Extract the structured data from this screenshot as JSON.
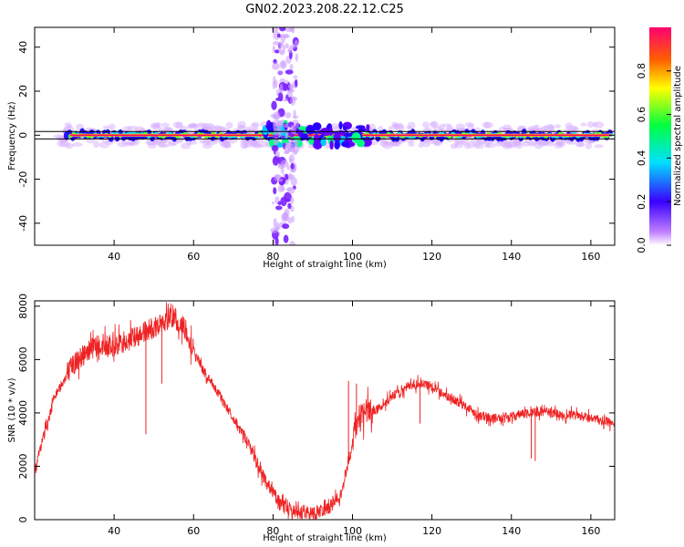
{
  "title": "GN02.2023.208.22.12.C25",
  "chart_data": [
    {
      "type": "heatmap",
      "xlabel": "Height of straight line (km)",
      "ylabel": "Frequency (Hz)",
      "xlim": [
        20,
        166
      ],
      "ylim": [
        -50,
        49
      ],
      "xticks": [
        40,
        60,
        80,
        100,
        120,
        140,
        160
      ],
      "yticks": [
        -40,
        -20,
        0,
        20,
        40
      ],
      "colorbar": {
        "label": "Normalized spectral amplitude",
        "range": [
          0.0,
          1.0
        ],
        "ticks": [
          "0.0",
          "0.2",
          "0.4",
          "0.6",
          "0.8"
        ]
      },
      "features": {
        "carrier_band_hz": [
          -3,
          3
        ],
        "broadband_burst_km": [
          80,
          86
        ],
        "turbulent_region_km": [
          78,
          104
        ]
      },
      "grid": false
    },
    {
      "type": "line",
      "xlabel": "Height of straight line (km)",
      "ylabel": "SNR (10 * v/v)",
      "xlim": [
        20,
        166
      ],
      "ylim": [
        0,
        8200
      ],
      "xticks": [
        40,
        60,
        80,
        100,
        120,
        140,
        160
      ],
      "yticks": [
        0,
        2000,
        4000,
        6000,
        8000
      ],
      "color": "#ee2222",
      "grid": false,
      "series": [
        {
          "x": [
            20,
            25,
            30,
            35,
            40,
            45,
            50,
            55,
            58,
            62,
            66,
            70,
            74,
            78,
            82,
            86,
            90,
            94,
            97,
            99,
            101,
            103,
            106,
            110,
            114,
            117,
            120,
            124,
            128,
            132,
            136,
            140,
            144,
            148,
            152,
            156,
            160,
            163,
            166
          ],
          "values": [
            1900,
            4600,
            5900,
            6500,
            6500,
            6800,
            7200,
            7600,
            7100,
            5700,
            4800,
            3800,
            2800,
            1500,
            550,
            250,
            250,
            450,
            900,
            2200,
            3600,
            4000,
            4100,
            4600,
            5000,
            5100,
            5000,
            4600,
            4300,
            3900,
            3800,
            3850,
            4000,
            4050,
            3950,
            3900,
            3800,
            3700,
            3600
          ]
        }
      ],
      "dips": [
        {
          "x": 48,
          "y": 3200
        },
        {
          "x": 52,
          "y": 5100
        },
        {
          "x": 117,
          "y": 3600
        },
        {
          "x": 145,
          "y": 2300
        },
        {
          "x": 146,
          "y": 2200
        }
      ],
      "spikes": [
        {
          "x": 99,
          "y": 5200
        },
        {
          "x": 101,
          "y": 5100
        }
      ]
    }
  ]
}
